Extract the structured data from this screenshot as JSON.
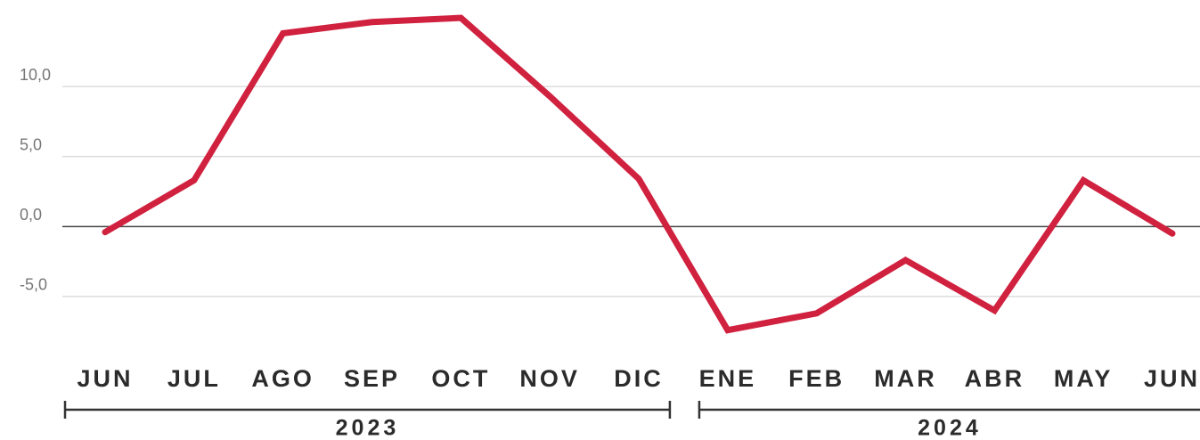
{
  "chart_data": {
    "type": "line",
    "categories": [
      "JUN",
      "JUL",
      "AGO",
      "SEP",
      "OCT",
      "NOV",
      "DIC",
      "ENE",
      "FEB",
      "MAR",
      "ABR",
      "MAY",
      "JUN"
    ],
    "series": [
      {
        "color": "#d0213f",
        "values": [
          -0.4,
          3.3,
          13.8,
          14.6,
          14.9,
          9.3,
          3.4,
          -7.4,
          -6.2,
          -2.4,
          -6.0,
          3.3,
          -0.5
        ]
      }
    ],
    "ylim": [
      -8,
      15
    ],
    "yticks": [
      {
        "value": -5,
        "label": "-5,0"
      },
      {
        "value": 0,
        "label": "0,0"
      },
      {
        "value": 5,
        "label": "5,0"
      },
      {
        "value": 10,
        "label": "10,0"
      }
    ],
    "grid": true,
    "groups": [
      {
        "label": "2023",
        "start": 0,
        "end": 6
      },
      {
        "label": "2024",
        "start": 7,
        "end": 12
      }
    ]
  }
}
